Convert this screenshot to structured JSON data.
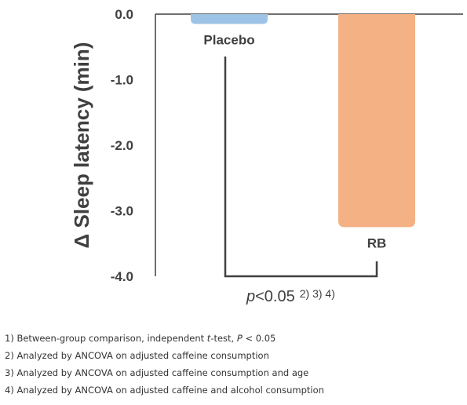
{
  "chart_data": {
    "type": "bar",
    "categories": [
      "Placebo",
      "RB"
    ],
    "values": [
      -0.15,
      -3.25
    ],
    "colors": [
      "#9dc3e6",
      "#f4b183"
    ],
    "ylabel": "Δ Sleep latency (min)",
    "ylim": [
      -4.0,
      0.0
    ],
    "yticks": [
      "0.0",
      "-1.0",
      "-2.0",
      "-3.0",
      "-4.0"
    ],
    "grid": false,
    "significance": {
      "text": "p<0.05",
      "superscript": "2) 3) 4)",
      "between": [
        "Placebo",
        "RB"
      ]
    }
  },
  "footnotes": [
    "1) Between-group comparison, independent t-test, P < 0.05",
    "2) Analyzed by ANCOVA on adjusted caffeine consumption",
    "3) Analyzed by ANCOVA on adjusted caffeine consumption and age",
    "4) Analyzed by ANCOVA on adjusted caffeine and alcohol consumption"
  ]
}
